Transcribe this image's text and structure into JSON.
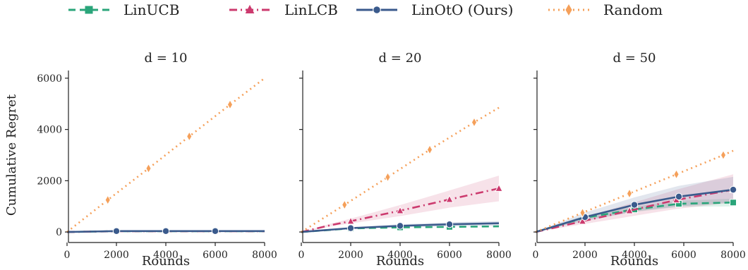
{
  "chart_data": {
    "type": "line",
    "legend": {
      "placement": "top-center",
      "entries": [
        {
          "name": "LinUCB",
          "color": "#2aa57a",
          "dash": "long-dash",
          "marker": "square"
        },
        {
          "name": "LinLCB",
          "color": "#cc3a6e",
          "dash": "dash-dot",
          "marker": "triangle"
        },
        {
          "name": "LinOtO (Ours)",
          "color": "#3a5a8c",
          "dash": "solid",
          "marker": "circle"
        },
        {
          "name": "Random",
          "color": "#f5a05a",
          "dash": "dotted",
          "marker": "diamond"
        }
      ]
    },
    "ylabel": "Cumulative Regret",
    "xlabel": "Rounds",
    "xlim": [
      0,
      8000
    ],
    "ylim": [
      -300,
      6300
    ],
    "xticks": [
      0,
      2000,
      4000,
      6000,
      8000
    ],
    "yticks": [
      0,
      2000,
      4000,
      6000
    ],
    "grid": false,
    "panels": [
      {
        "title": "d = 10",
        "series": [
          {
            "name": "LinUCB",
            "x": [
              0,
              2000,
              4000,
              6000,
              8000
            ],
            "values": [
              0,
              30,
              30,
              30,
              30
            ],
            "band": null,
            "markers_x": [
              2000,
              4000,
              6000
            ]
          },
          {
            "name": "LinLCB",
            "x": [
              0,
              2000,
              4000,
              6000,
              8000
            ],
            "values": [
              0,
              30,
              30,
              30,
              30
            ],
            "band": null,
            "markers_x": [
              2000,
              4000,
              6000
            ]
          },
          {
            "name": "LinOtO (Ours)",
            "x": [
              0,
              2000,
              4000,
              6000,
              8000
            ],
            "values": [
              0,
              35,
              35,
              35,
              35
            ],
            "band": null,
            "markers_x": [
              2000,
              4000,
              6000
            ]
          },
          {
            "name": "Random",
            "x": [
              0,
              1650,
              3300,
              4950,
              6600,
              8000
            ],
            "values": [
              0,
              1250,
              2480,
              3730,
              4970,
              6000
            ],
            "band": null,
            "markers_x": [
              1650,
              3300,
              4950,
              6600
            ]
          }
        ]
      },
      {
        "title": "d = 20",
        "series": [
          {
            "name": "LinUCB",
            "x": [
              0,
              2000,
              4000,
              6000,
              8000
            ],
            "values": [
              0,
              140,
              180,
              200,
              220
            ],
            "band": null,
            "markers_x": [
              2000,
              4000,
              6000
            ]
          },
          {
            "name": "LinLCB",
            "x": [
              0,
              1200,
              2000,
              4000,
              6000,
              8000
            ],
            "values": [
              0,
              270,
              420,
              830,
              1270,
              1700
            ],
            "band": {
              "lower": [
                0,
                220,
                330,
                620,
                950,
                1200
              ],
              "upper": [
                0,
                330,
                520,
                1050,
                1620,
                2200
              ]
            },
            "markers_x": [
              2000,
              4000,
              6000,
              8000
            ]
          },
          {
            "name": "LinOtO (Ours)",
            "x": [
              0,
              2000,
              4000,
              6000,
              8000
            ],
            "values": [
              0,
              150,
              240,
              300,
              340
            ],
            "band": {
              "lower": [
                0,
                120,
                180,
                220,
                240
              ],
              "upper": [
                0,
                190,
                300,
                380,
                430
              ]
            },
            "markers_x": [
              2000,
              4000,
              6000
            ]
          },
          {
            "name": "Random",
            "x": [
              0,
              1750,
              3500,
              5200,
              7000,
              8000
            ],
            "values": [
              0,
              1060,
              2140,
              3210,
              4280,
              4850
            ],
            "band": null,
            "markers_x": [
              1750,
              3500,
              5200,
              7000
            ]
          }
        ]
      },
      {
        "title": "d = 50",
        "series": [
          {
            "name": "LinUCB",
            "x": [
              0,
              2000,
              4000,
              5800,
              8000
            ],
            "values": [
              0,
              560,
              880,
              1100,
              1150
            ],
            "band": {
              "lower": [
                0,
                480,
                780,
                980,
                1000
              ],
              "upper": [
                0,
                650,
                990,
                1220,
                1300
              ]
            },
            "markers_x": [
              2000,
              4000,
              5800,
              8000
            ]
          },
          {
            "name": "LinLCB",
            "x": [
              0,
              1900,
              3800,
              5700,
              8000
            ],
            "values": [
              0,
              420,
              830,
              1250,
              1650
            ],
            "band": {
              "lower": [
                0,
                300,
                600,
                900,
                1150
              ],
              "upper": [
                0,
                560,
                1100,
                1650,
                2250
              ]
            },
            "markers_x": [
              1900,
              3800,
              5700,
              8000
            ]
          },
          {
            "name": "LinOtO (Ours)",
            "x": [
              0,
              2000,
              4000,
              5800,
              8000
            ],
            "values": [
              0,
              580,
              1060,
              1380,
              1650
            ],
            "band": {
              "lower": [
                0,
                420,
                800,
                1000,
                1150
              ],
              "upper": [
                0,
                760,
                1350,
                1800,
                2150
              ]
            },
            "markers_x": [
              2000,
              4000,
              5800,
              8000
            ]
          },
          {
            "name": "Random",
            "x": [
              0,
              1900,
              3800,
              5700,
              7600,
              8000
            ],
            "values": [
              0,
              750,
              1500,
              2250,
              3000,
              3170
            ],
            "band": null,
            "markers_x": [
              1900,
              3800,
              5700,
              7600
            ]
          }
        ]
      }
    ]
  }
}
